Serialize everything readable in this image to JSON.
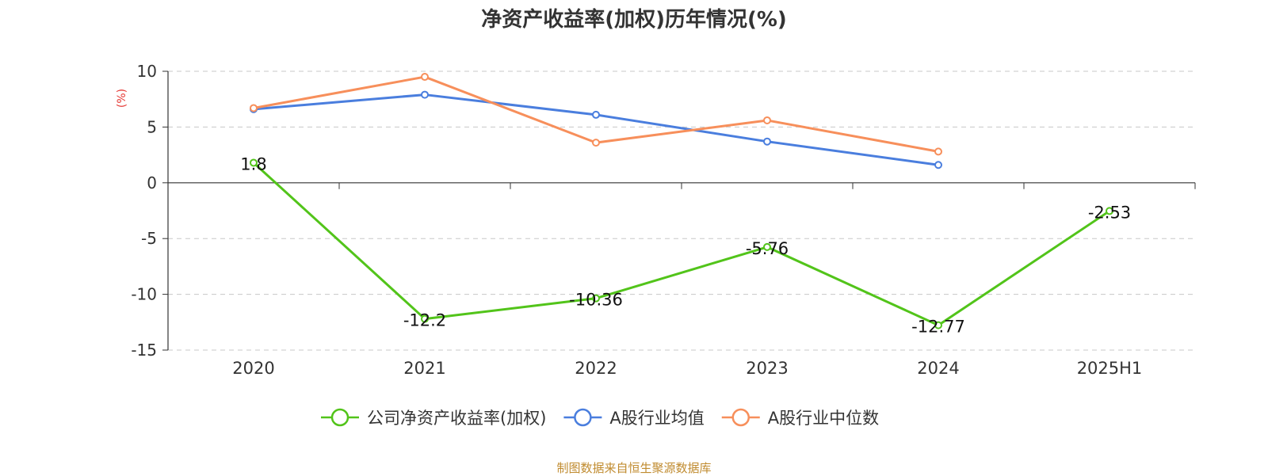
{
  "chart_data": {
    "type": "line",
    "title": "净资产收益率(加权)历年情况(%)",
    "ylabel": "(%)",
    "xlabel": "",
    "categories": [
      "2020",
      "2021",
      "2022",
      "2023",
      "2024",
      "2025H1"
    ],
    "ylim": [
      -15,
      10
    ],
    "yticks": [
      10,
      5,
      0,
      -5,
      -10,
      -15
    ],
    "grid": true,
    "legend_position": "bottom",
    "series": [
      {
        "name": "公司净资产收益率(加权)",
        "color": "#52c41a",
        "values": [
          1.8,
          -12.2,
          -10.36,
          -5.76,
          -12.77,
          -2.53
        ],
        "labels": [
          "1.8",
          "-12.2",
          "-10.36",
          "-5.76",
          "-12.77",
          "-2.53"
        ]
      },
      {
        "name": "A股行业均值",
        "color": "#4a7ede",
        "values": [
          6.6,
          7.9,
          6.1,
          3.7,
          1.6,
          null
        ]
      },
      {
        "name": "A股行业中位数",
        "color": "#f78f5b",
        "values": [
          6.7,
          9.5,
          3.6,
          5.6,
          2.8,
          null
        ]
      }
    ]
  },
  "footer": {
    "source": "制图数据来自恒生聚源数据库"
  }
}
